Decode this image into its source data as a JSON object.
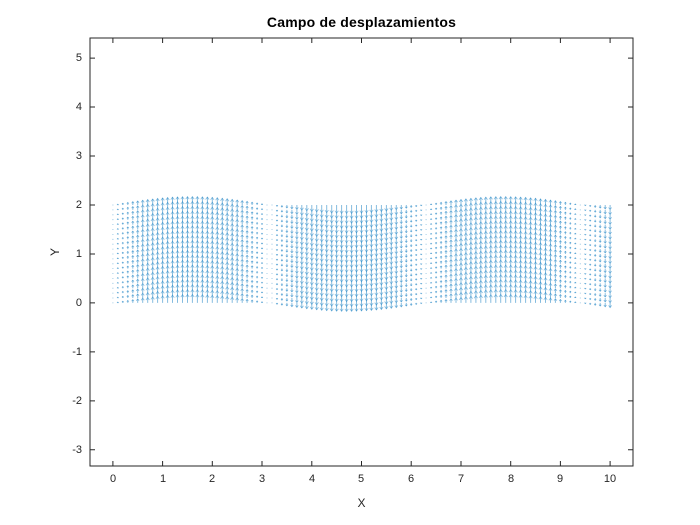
{
  "figure": {
    "background": "#ffffff"
  },
  "chart_data": {
    "type": "quiver",
    "title": "Campo de desplazamientos",
    "xlabel": "X",
    "ylabel": "Y",
    "xlim": [
      -0.46,
      10.46
    ],
    "ylim": [
      -3.33,
      5.41
    ],
    "xticks": [
      0,
      1,
      2,
      3,
      4,
      5,
      6,
      7,
      8,
      9,
      10
    ],
    "yticks": [
      5,
      4,
      3,
      2,
      1,
      0,
      -1,
      -2,
      -3
    ],
    "grid": false,
    "colors": {
      "arrow": "#0072BD",
      "axis": "#262626",
      "tick_text": "#262626",
      "title_text": "#000000",
      "background": "#ffffff"
    },
    "field": {
      "description": "Displacement field: nearly vertical arrows with v(x) = amplitude*sin(x), u = 0, on a rectangular grid; nodes (near-zero arrows) at x = 0, pi, 2pi, 3pi",
      "x_start": 0,
      "x_end": 10,
      "x_step": 0.1,
      "y_start": 0,
      "y_end": 2,
      "y_step": 0.1,
      "u_formula": "0",
      "v_formula": "amplitude * sin(x)",
      "amplitude": 0.17
    }
  }
}
